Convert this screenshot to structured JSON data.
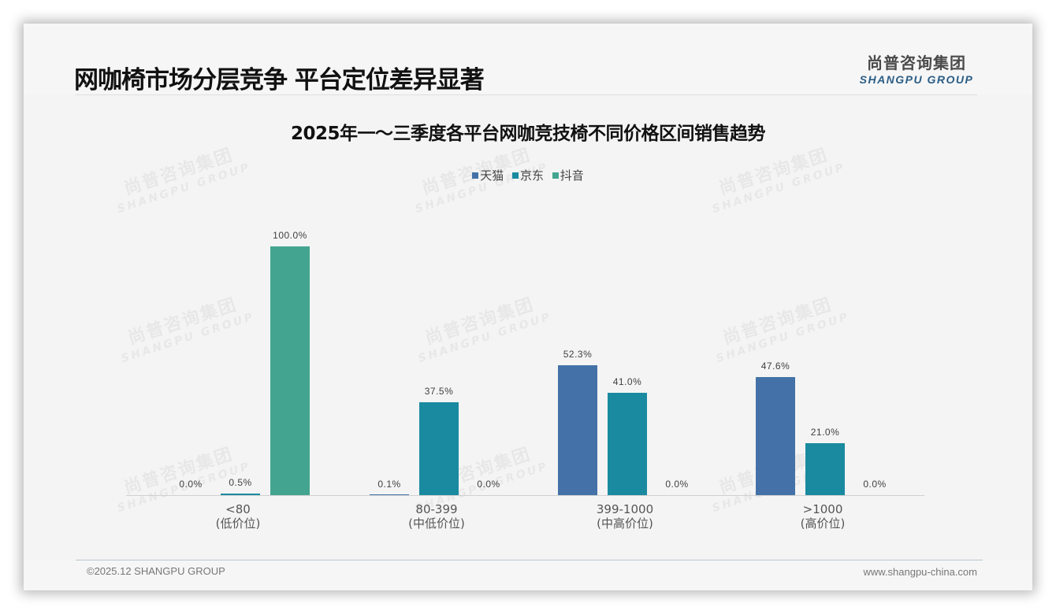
{
  "header": {
    "title": "网咖椅市场分层竞争 平台定位差异显著",
    "logo_cn": "尚普咨询集团",
    "logo_en": "SHANGPU GROUP"
  },
  "watermark": {
    "cn": "尚普咨询集团",
    "en": "SHANGPU GROUP"
  },
  "footer": {
    "copyright": "©2025.12 SHANGPU GROUP",
    "website": "www.shangpu-china.com"
  },
  "colors": {
    "tmall": "#4472a8",
    "jd": "#1a8aa0",
    "douyin": "#43a590"
  },
  "chart_data": {
    "type": "bar",
    "title": "2025年一～三季度各平台网咖竞技椅不同价格区间销售趋势",
    "xlabel": "",
    "ylabel": "",
    "ylim": [
      0,
      100
    ],
    "grid": false,
    "legend_position": "top",
    "categories": [
      "<80\n(低价位)",
      "80-399\n(中低价位)",
      "399-1000\n(中高价位)",
      ">1000\n(高价位)"
    ],
    "category_lines": [
      [
        "<80",
        "(低价位)"
      ],
      [
        "80-399",
        "(中低价位)"
      ],
      [
        "399-1000",
        "(中高价位)"
      ],
      [
        ">1000",
        "(高价位)"
      ]
    ],
    "series": [
      {
        "name": "天猫",
        "color": "#4472a8",
        "values": [
          0.0,
          0.1,
          52.3,
          47.6
        ],
        "labels": [
          "0.0%",
          "0.1%",
          "52.3%",
          "47.6%"
        ]
      },
      {
        "name": "京东",
        "color": "#1a8aa0",
        "values": [
          0.5,
          37.5,
          41.0,
          21.0
        ],
        "labels": [
          "0.5%",
          "37.5%",
          "41.0%",
          "21.0%"
        ]
      },
      {
        "name": "抖音",
        "color": "#43a590",
        "values": [
          100.0,
          0.0,
          0.0,
          0.0
        ],
        "labels": [
          "100.0%",
          "0.0%",
          "0.0%",
          "0.0%"
        ]
      }
    ]
  }
}
